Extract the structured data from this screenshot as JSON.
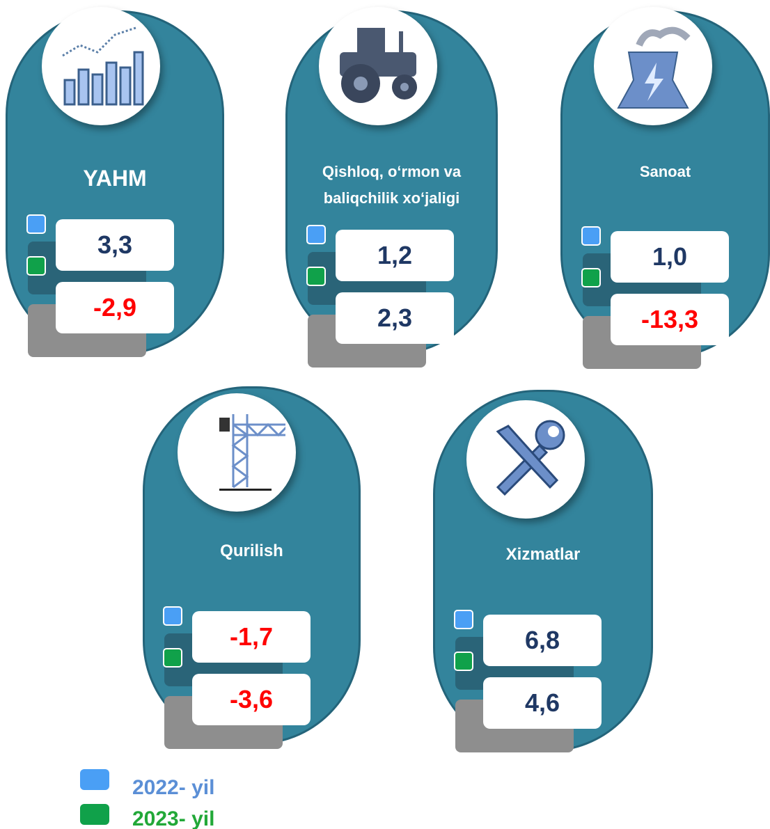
{
  "cards": [
    {
      "title": "YAHM",
      "values": [
        {
          "text": "3,3",
          "color": "#1f3864"
        },
        {
          "text": "-2,9",
          "color": "#ff0000"
        }
      ]
    },
    {
      "title": "Qishloq, o‘rmon va baliqchilik xo‘jaligi",
      "values": [
        {
          "text": "1,2",
          "color": "#1f3864"
        },
        {
          "text": "2,3",
          "color": "#1f3864"
        }
      ]
    },
    {
      "title": "Sanoat",
      "values": [
        {
          "text": "1,0",
          "color": "#1f3864"
        },
        {
          "text": "-13,3",
          "color": "#ff0000"
        }
      ]
    },
    {
      "title": "Qurilish",
      "values": [
        {
          "text": "-1,7",
          "color": "#ff0000"
        },
        {
          "text": "-3,6",
          "color": "#ff0000"
        }
      ]
    },
    {
      "title": "Xizmatlar",
      "values": [
        {
          "text": "6,8",
          "color": "#1f3864"
        },
        {
          "text": "4,6",
          "color": "#1f3864"
        }
      ]
    }
  ],
  "legend": [
    {
      "label": "2022- yil",
      "color": "#4a9ff5",
      "text_color": "#5b8fd6"
    },
    {
      "label": "2023- yil",
      "color": "#10a14a",
      "text_color": "#22a838"
    }
  ]
}
